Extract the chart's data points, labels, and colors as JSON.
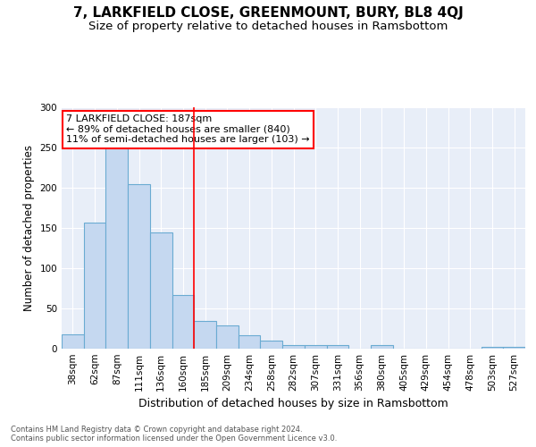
{
  "title": "7, LARKFIELD CLOSE, GREENMOUNT, BURY, BL8 4QJ",
  "subtitle": "Size of property relative to detached houses in Ramsbottom",
  "xlabel": "Distribution of detached houses by size in Ramsbottom",
  "ylabel": "Number of detached properties",
  "categories": [
    "38sqm",
    "62sqm",
    "87sqm",
    "111sqm",
    "136sqm",
    "160sqm",
    "185sqm",
    "209sqm",
    "234sqm",
    "258sqm",
    "282sqm",
    "307sqm",
    "331sqm",
    "356sqm",
    "380sqm",
    "405sqm",
    "429sqm",
    "454sqm",
    "478sqm",
    "503sqm",
    "527sqm"
  ],
  "values": [
    18,
    157,
    250,
    204,
    145,
    67,
    35,
    29,
    17,
    10,
    5,
    5,
    4,
    0,
    4,
    0,
    0,
    0,
    0,
    2,
    2
  ],
  "bar_color": "#c5d8f0",
  "bar_edge_color": "#6aabd2",
  "background_color": "#e8eef8",
  "grid_color": "#ffffff",
  "vline_color": "red",
  "vline_index": 6,
  "annotation_text": "7 LARKFIELD CLOSE: 187sqm\n← 89% of detached houses are smaller (840)\n11% of semi-detached houses are larger (103) →",
  "annotation_box_facecolor": "white",
  "annotation_box_edgecolor": "red",
  "ylim": [
    0,
    300
  ],
  "yticks": [
    0,
    50,
    100,
    150,
    200,
    250,
    300
  ],
  "figure_facecolor": "#ffffff",
  "title_fontsize": 11,
  "subtitle_fontsize": 9.5,
  "xlabel_fontsize": 9,
  "ylabel_fontsize": 8.5,
  "tick_fontsize": 7.5,
  "annotation_fontsize": 8,
  "footer": "Contains HM Land Registry data © Crown copyright and database right 2024.\nContains public sector information licensed under the Open Government Licence v3.0.",
  "footer_fontsize": 6
}
